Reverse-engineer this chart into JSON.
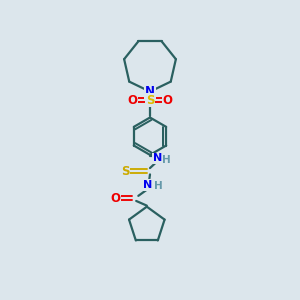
{
  "bg_color": "#dce6ec",
  "atom_colors": {
    "N": "#0000ee",
    "O": "#ee0000",
    "S_sulfonyl": "#ddbb00",
    "S_thio": "#ccaa00",
    "C": "#2a6060",
    "H": "#6699aa"
  },
  "bond_color": "#2a6060",
  "line_width": 1.6,
  "figsize": [
    3.0,
    3.0
  ],
  "dpi": 100
}
